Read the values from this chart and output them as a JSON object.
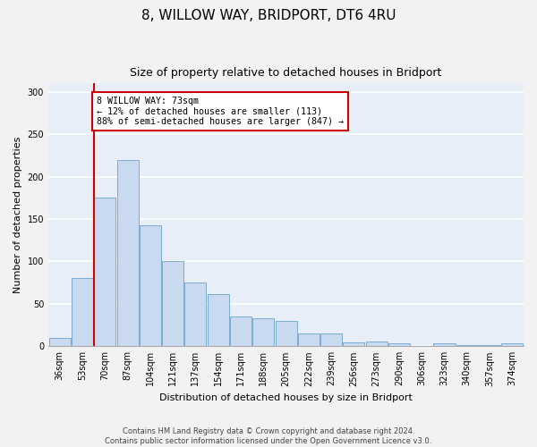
{
  "title1": "8, WILLOW WAY, BRIDPORT, DT6 4RU",
  "title2": "Size of property relative to detached houses in Bridport",
  "xlabel": "Distribution of detached houses by size in Bridport",
  "ylabel": "Number of detached properties",
  "categories": [
    "36sqm",
    "53sqm",
    "70sqm",
    "87sqm",
    "104sqm",
    "121sqm",
    "137sqm",
    "154sqm",
    "171sqm",
    "188sqm",
    "205sqm",
    "222sqm",
    "239sqm",
    "256sqm",
    "273sqm",
    "290sqm",
    "306sqm",
    "323sqm",
    "340sqm",
    "357sqm",
    "374sqm"
  ],
  "values": [
    10,
    80,
    175,
    220,
    143,
    100,
    75,
    62,
    35,
    33,
    30,
    15,
    15,
    5,
    6,
    3,
    0,
    4,
    1,
    1,
    3
  ],
  "bar_color": "#c9d9f0",
  "bar_edge_color": "#7aadd4",
  "property_line_x": 1.5,
  "annotation_text": "8 WILLOW WAY: 73sqm\n← 12% of detached houses are smaller (113)\n88% of semi-detached houses are larger (847) →",
  "annotation_box_color": "#ffffff",
  "annotation_box_edge_color": "#cc0000",
  "line_color": "#cc0000",
  "ylim": [
    0,
    310
  ],
  "yticks": [
    0,
    50,
    100,
    150,
    200,
    250,
    300
  ],
  "footer1": "Contains HM Land Registry data © Crown copyright and database right 2024.",
  "footer2": "Contains public sector information licensed under the Open Government Licence v3.0.",
  "fig_bg_color": "#f2f2f2",
  "plot_bg_color": "#e8eef8",
  "grid_color": "#ffffff",
  "title1_fontsize": 11,
  "title2_fontsize": 9,
  "label_fontsize": 8,
  "tick_fontsize": 7,
  "footer_fontsize": 6
}
